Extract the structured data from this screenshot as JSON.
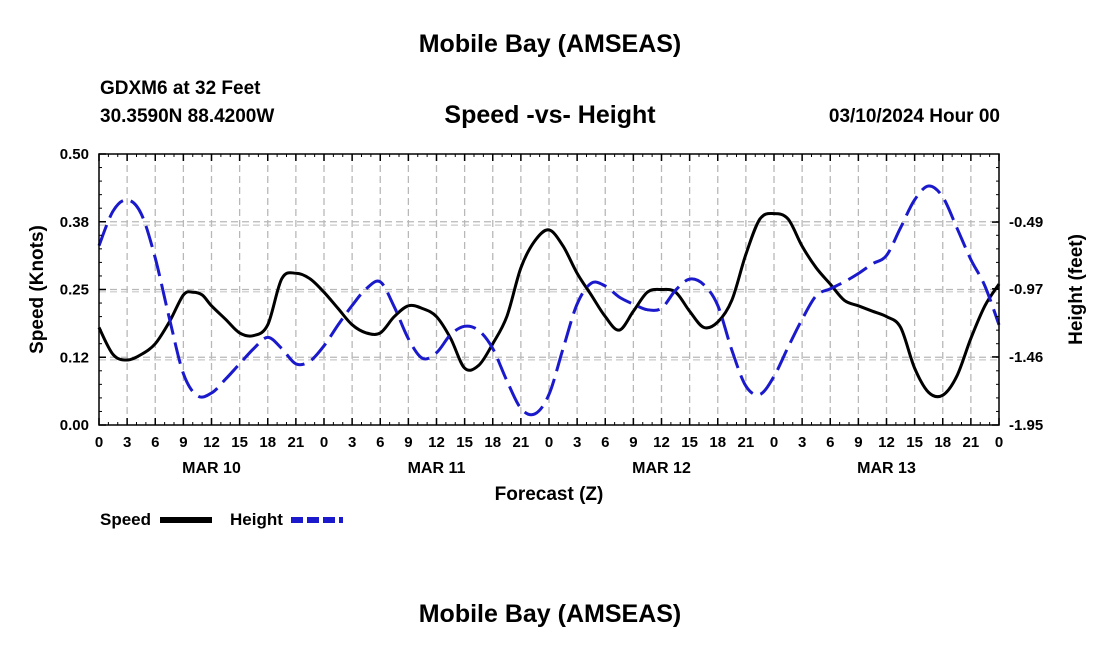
{
  "header": {
    "title": "Mobile Bay (AMSEAS)",
    "station": "GDXM6 at 32 Feet",
    "coordinates": "30.3590N  88.4200W",
    "subtitle": "Speed -vs- Height",
    "issue_time": "03/10/2024 Hour 00"
  },
  "footer": {
    "title": "Mobile Bay (AMSEAS)"
  },
  "chart_data": {
    "type": "line",
    "title": "Speed -vs- Height",
    "xlabel": "Forecast (Z)",
    "ylabel": "Speed (Knots)",
    "y2label": "Height (feet)",
    "grid": true,
    "x_range": [
      0,
      96
    ],
    "ylim": [
      0.0,
      0.5
    ],
    "y2lim": [
      -1.95,
      -0.0
    ],
    "y_ticks": [
      "0.00",
      "0.12",
      "0.25",
      "0.38",
      "0.50"
    ],
    "y2_ticks": [
      "-1.95",
      "-1.46",
      "-0.97",
      "-0.49"
    ],
    "y2_tick_values": [
      -1.95,
      -1.46,
      -0.97,
      -0.49
    ],
    "x_tick_labels": [
      "0",
      "3",
      "6",
      "9",
      "12",
      "15",
      "18",
      "21",
      "0",
      "3",
      "6",
      "9",
      "12",
      "15",
      "18",
      "21",
      "0",
      "3",
      "6",
      "9",
      "12",
      "15",
      "18",
      "21",
      "0",
      "3",
      "6",
      "9",
      "12",
      "15",
      "18",
      "21",
      "0"
    ],
    "day_labels": [
      {
        "label": "MAR 10",
        "hour": 12
      },
      {
        "label": "MAR 11",
        "hour": 36
      },
      {
        "label": "MAR 12",
        "hour": 60
      },
      {
        "label": "MAR 13",
        "hour": 84
      }
    ],
    "legend": {
      "position": "bottom-left",
      "speed_label": "Speed",
      "height_label": "Height"
    },
    "series": [
      {
        "name": "Speed",
        "axis": "left",
        "color": "#000000",
        "style": "solid",
        "x": [
          0,
          1.5,
          3,
          4.5,
          6,
          7.5,
          9,
          10,
          11,
          12,
          13.5,
          15,
          16.5,
          18,
          19.5,
          21,
          22.5,
          24,
          25.5,
          27,
          28.5,
          30,
          31.5,
          33,
          34.5,
          36,
          37.5,
          39,
          40.5,
          42,
          43.5,
          45,
          46.5,
          48,
          49.5,
          51,
          52.5,
          54,
          55.5,
          57,
          58.5,
          60,
          61.5,
          63,
          64.5,
          66,
          67.5,
          69,
          70.5,
          72,
          73.5,
          75,
          76.5,
          78,
          79.5,
          81,
          82.5,
          84,
          85.5,
          87,
          88.5,
          90,
          91.5,
          93,
          94.5,
          96
        ],
        "values": [
          0.18,
          0.13,
          0.12,
          0.13,
          0.15,
          0.19,
          0.24,
          0.245,
          0.24,
          0.22,
          0.195,
          0.17,
          0.165,
          0.185,
          0.27,
          0.28,
          0.27,
          0.245,
          0.215,
          0.185,
          0.17,
          0.17,
          0.2,
          0.22,
          0.215,
          0.2,
          0.16,
          0.105,
          0.11,
          0.15,
          0.2,
          0.29,
          0.34,
          0.36,
          0.33,
          0.28,
          0.24,
          0.2,
          0.175,
          0.21,
          0.245,
          0.25,
          0.245,
          0.21,
          0.18,
          0.19,
          0.23,
          0.315,
          0.38,
          0.39,
          0.38,
          0.33,
          0.29,
          0.26,
          0.23,
          0.22,
          0.21,
          0.2,
          0.18,
          0.105,
          0.06,
          0.055,
          0.09,
          0.16,
          0.22,
          0.26
        ]
      },
      {
        "name": "Height",
        "axis": "right",
        "color": "#1a1acc",
        "style": "dashed",
        "x": [
          0,
          1.5,
          3,
          4.5,
          6,
          7.5,
          9,
          10.5,
          12,
          13.5,
          15,
          16.5,
          18,
          19.5,
          21,
          22.5,
          24,
          25.5,
          27,
          28.5,
          30,
          31.5,
          33,
          34.5,
          36,
          37.5,
          39,
          40.5,
          42,
          43.5,
          45,
          46.5,
          48,
          49.5,
          51,
          52.5,
          54,
          55.5,
          57,
          58.5,
          60,
          61.5,
          63,
          64.5,
          66,
          67.5,
          69,
          70.5,
          72,
          73.5,
          75,
          76.5,
          78,
          79.5,
          81,
          82.5,
          84,
          85.5,
          87,
          88.5,
          90,
          91.5,
          93,
          94.5,
          96
        ],
        "values": [
          -0.66,
          -0.41,
          -0.33,
          -0.43,
          -0.75,
          -1.18,
          -1.58,
          -1.74,
          -1.72,
          -1.62,
          -1.51,
          -1.4,
          -1.32,
          -1.4,
          -1.51,
          -1.49,
          -1.38,
          -1.23,
          -1.09,
          -0.97,
          -0.92,
          -1.1,
          -1.33,
          -1.47,
          -1.43,
          -1.3,
          -1.24,
          -1.27,
          -1.4,
          -1.63,
          -1.83,
          -1.87,
          -1.73,
          -1.4,
          -1.08,
          -0.93,
          -0.95,
          -1.03,
          -1.08,
          -1.12,
          -1.11,
          -0.98,
          -0.9,
          -0.94,
          -1.09,
          -1.41,
          -1.67,
          -1.73,
          -1.6,
          -1.39,
          -1.19,
          -1.02,
          -0.97,
          -0.92,
          -0.86,
          -0.79,
          -0.73,
          -0.53,
          -0.33,
          -0.23,
          -0.31,
          -0.53,
          -0.76,
          -0.95,
          -1.23
        ]
      }
    ]
  }
}
